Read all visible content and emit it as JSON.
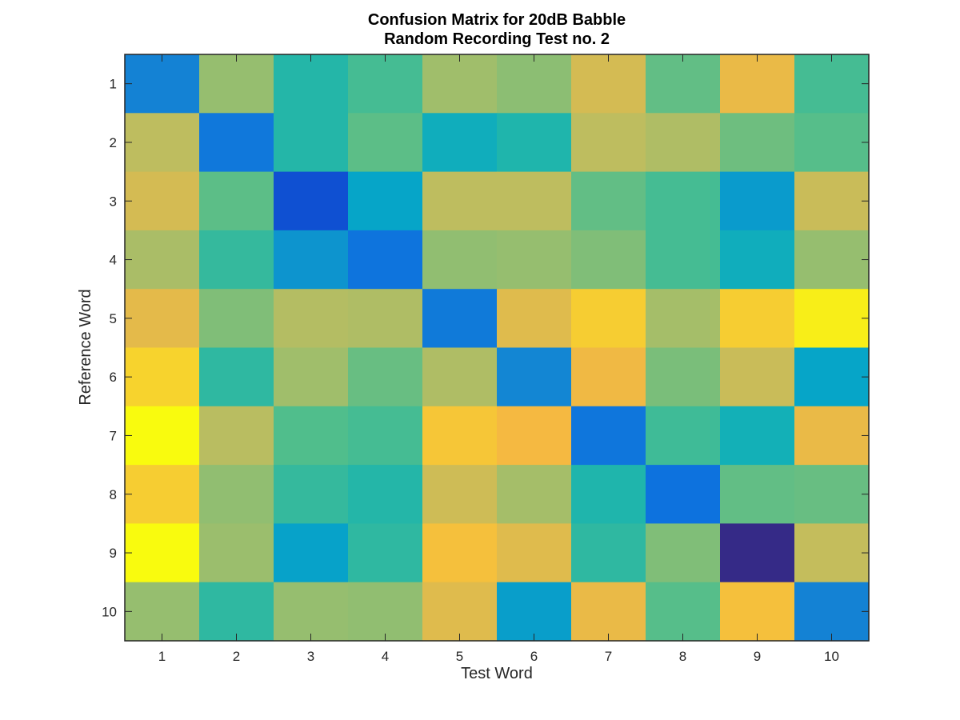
{
  "chart_data": {
    "type": "heatmap",
    "title": [
      "Confusion Matrix for 20dB Babble",
      "Random Recording Test no. 2"
    ],
    "xlabel": "Test Word",
    "ylabel": "Reference Word",
    "x_categories": [
      "1",
      "2",
      "3",
      "4",
      "5",
      "6",
      "7",
      "8",
      "9",
      "10"
    ],
    "y_categories": [
      "1",
      "2",
      "3",
      "4",
      "5",
      "6",
      "7",
      "8",
      "9",
      "10"
    ],
    "colormap": "parula",
    "clim": [
      0,
      1
    ],
    "grid": false,
    "colorbar": false,
    "values": [
      [
        0.3,
        0.72,
        0.52,
        0.58,
        0.74,
        0.7,
        0.84,
        0.63,
        0.88,
        0.58
      ],
      [
        0.8,
        0.25,
        0.52,
        0.62,
        0.45,
        0.51,
        0.8,
        0.77,
        0.65,
        0.61
      ],
      [
        0.84,
        0.62,
        0.1,
        0.4,
        0.8,
        0.8,
        0.63,
        0.58,
        0.37,
        0.82
      ],
      [
        0.76,
        0.55,
        0.35,
        0.23,
        0.71,
        0.72,
        0.68,
        0.58,
        0.45,
        0.72
      ],
      [
        0.87,
        0.68,
        0.78,
        0.77,
        0.26,
        0.86,
        0.93,
        0.75,
        0.93,
        0.98
      ],
      [
        0.94,
        0.54,
        0.74,
        0.64,
        0.77,
        0.31,
        0.89,
        0.67,
        0.82,
        0.4
      ],
      [
        1.0,
        0.79,
        0.6,
        0.58,
        0.92,
        0.9,
        0.24,
        0.57,
        0.47,
        0.88
      ],
      [
        0.93,
        0.71,
        0.55,
        0.52,
        0.83,
        0.75,
        0.51,
        0.22,
        0.63,
        0.64
      ],
      [
        1.01,
        0.73,
        0.39,
        0.54,
        0.91,
        0.86,
        0.54,
        0.68,
        0.0,
        0.81
      ],
      [
        0.72,
        0.54,
        0.72,
        0.71,
        0.86,
        0.38,
        0.88,
        0.61,
        0.91,
        0.3
      ]
    ]
  }
}
